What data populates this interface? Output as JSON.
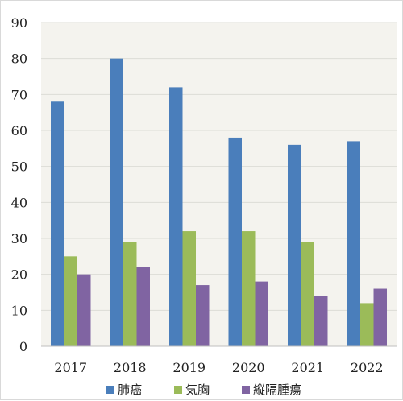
{
  "chart_data": {
    "type": "bar",
    "categories": [
      "2017",
      "2018",
      "2019",
      "2020",
      "2021",
      "2022"
    ],
    "series": [
      {
        "name": "肺癌",
        "values": [
          68,
          80,
          72,
          58,
          56,
          57
        ],
        "color": "#4a7ebb"
      },
      {
        "name": "気胸",
        "values": [
          25,
          29,
          32,
          32,
          29,
          12
        ],
        "color": "#9bbb59"
      },
      {
        "name": "縦隔腫瘍",
        "values": [
          20,
          22,
          17,
          18,
          14,
          16
        ],
        "color": "#8064a2"
      }
    ],
    "ylim": [
      0,
      90
    ],
    "yticks": [
      "0",
      "10",
      "20",
      "30",
      "40",
      "50",
      "60",
      "70",
      "80",
      "90"
    ],
    "grid": true,
    "plot_background": "#f4f3ee",
    "legend_position": "bottom"
  }
}
